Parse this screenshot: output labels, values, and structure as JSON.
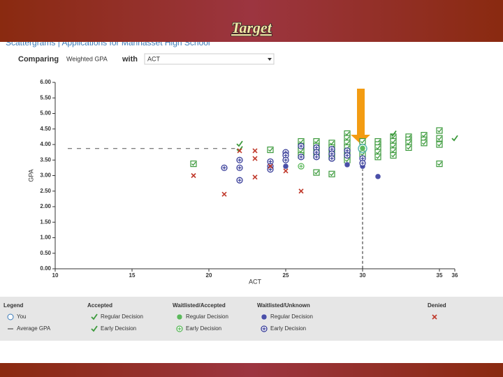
{
  "slide_title": "Target",
  "page_header": "Scattergrams | Applications for Manhasset High School",
  "controls": {
    "comparing_label": "Comparing",
    "compare_field": "Weighted GPA",
    "with_label": "with",
    "with_field": "ACT"
  },
  "chart_data": {
    "type": "scatter",
    "x_label": "ACT",
    "y_label": "GPA",
    "xlim": [
      10,
      36
    ],
    "xticks": [
      10,
      15,
      20,
      25,
      30,
      35,
      36
    ],
    "ylim": [
      0,
      6
    ],
    "yticks": [
      {
        "value": 0,
        "label": "0.00"
      },
      {
        "value": 0.5,
        "label": "0.50"
      },
      {
        "value": 1,
        "label": "1.00"
      },
      {
        "value": 1.5,
        "label": "1.50"
      },
      {
        "value": 2,
        "label": "2.00"
      },
      {
        "value": 2.5,
        "label": "2.50"
      },
      {
        "value": 3,
        "label": "3.00"
      },
      {
        "value": 3.5,
        "label": "3.50"
      },
      {
        "value": 4,
        "label": "4.00"
      },
      {
        "value": 4.5,
        "label": "4.50"
      },
      {
        "value": 5,
        "label": "5.00"
      },
      {
        "value": 5.5,
        "label": "5.50"
      },
      {
        "value": 6,
        "label": "6.00"
      }
    ],
    "average_gpa": {
      "y": 3.87,
      "x_end": 21.7
    },
    "target": {
      "x": 30,
      "y": 3.87
    },
    "legend_title": "Legend",
    "you_label": "You",
    "average_label": "Average GPA",
    "groups": [
      {
        "name": "Accepted",
        "series": [
          {
            "name": "Regular Decision",
            "marker": "check-square",
            "color": "#3c9a3c",
            "x": [
              19,
              24,
              26,
              26,
              26,
              26,
              27,
              27,
              27,
              27,
              27,
              28,
              28,
              28,
              28,
              28,
              29,
              29,
              29,
              29,
              29,
              29,
              29,
              30,
              30,
              31,
              31,
              31,
              31,
              31,
              32,
              32,
              32,
              32,
              32,
              33,
              33,
              33,
              33,
              34,
              34,
              34,
              35,
              35,
              35,
              35
            ],
            "values": [
              3.38,
              3.83,
              4.1,
              3.95,
              3.8,
              3.65,
              4.1,
              3.95,
              3.8,
              3.65,
              3.1,
              4.05,
              3.9,
              3.75,
              3.6,
              3.05,
              4.35,
              4.2,
              4.05,
              3.9,
              3.75,
              3.6,
              3.5,
              4.1,
              3.7,
              4.1,
              4.0,
              3.9,
              3.75,
              3.6,
              4.25,
              4.1,
              3.95,
              3.8,
              3.65,
              4.25,
              4.15,
              4.05,
              3.9,
              4.3,
              4.15,
              4.05,
              4.45,
              4.2,
              4.0,
              3.38
            ]
          },
          {
            "name": "Early Decision",
            "marker": "check",
            "color": "#3c9a3c",
            "x": [
              22,
              22,
              32,
              36
            ],
            "values": [
              4.02,
              3.85,
              4.35,
              4.2
            ]
          }
        ]
      },
      {
        "name": "Waitlisted/Accepted",
        "series": [
          {
            "name": "Regular Decision",
            "marker": "circle",
            "color": "#5cb85c",
            "x": [
              30
            ],
            "values": [
              3.88
            ]
          },
          {
            "name": "Early Decision",
            "marker": "circle-cross",
            "color": "#5cb85c",
            "x": [
              26
            ],
            "values": [
              3.3
            ]
          }
        ]
      },
      {
        "name": "Waitlisted/Unknown",
        "series": [
          {
            "name": "Regular Decision",
            "marker": "circle",
            "color": "#4a4fa8",
            "x": [
              25,
              29,
              30,
              31
            ],
            "values": [
              3.3,
              3.35,
              3.3,
              2.97
            ]
          },
          {
            "name": "Early Decision",
            "marker": "circle-cross",
            "color": "#3a3f9a",
            "x": [
              21,
              22,
              22,
              22,
              24,
              24,
              24,
              25,
              25,
              25,
              26,
              26,
              27,
              27,
              27,
              28,
              28,
              28,
              29,
              29,
              30,
              30
            ],
            "values": [
              3.25,
              3.5,
              3.25,
              2.85,
              3.45,
              3.3,
              3.2,
              3.75,
              3.65,
              3.5,
              3.95,
              3.6,
              3.9,
              3.75,
              3.6,
              3.85,
              3.7,
              3.55,
              3.8,
              3.65,
              3.55,
              3.4
            ]
          }
        ]
      },
      {
        "name": "Denied",
        "series": [
          {
            "marker": "x",
            "color": "#c0392b",
            "x": [
              19,
              21,
              22,
              23,
              23,
              23,
              24,
              25,
              26
            ],
            "values": [
              3.0,
              2.4,
              3.8,
              3.8,
              3.55,
              2.95,
              3.3,
              3.15,
              2.5
            ]
          }
        ]
      }
    ]
  }
}
